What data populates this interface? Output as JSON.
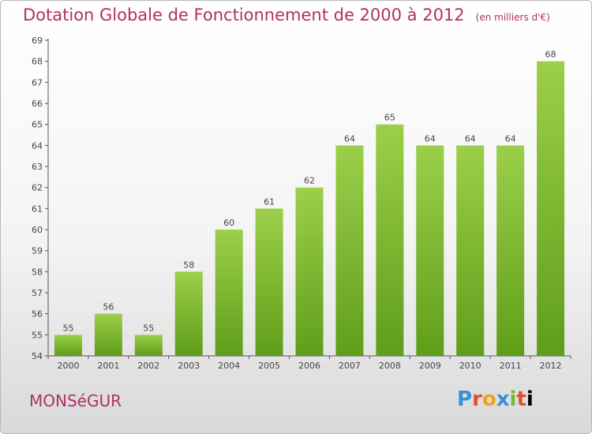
{
  "header": {
    "title": "Dotation Globale de Fonctionnement de 2000 à 2012",
    "unit": "(en milliers d'€)"
  },
  "footer": {
    "city": "MONSéGUR",
    "logo_letters": [
      "P",
      "r",
      "o",
      "x",
      "i",
      "t",
      "i"
    ]
  },
  "chart_data": {
    "type": "bar",
    "title": "Dotation Globale de Fonctionnement de 2000 à 2012",
    "xlabel": "",
    "ylabel": "",
    "categories": [
      "2000",
      "2001",
      "2002",
      "2003",
      "2004",
      "2005",
      "2006",
      "2007",
      "2008",
      "2009",
      "2010",
      "2011",
      "2012"
    ],
    "values": [
      55,
      56,
      55,
      58,
      60,
      61,
      62,
      64,
      65,
      64,
      64,
      64,
      68
    ],
    "ylim": [
      54,
      69
    ],
    "yticks": [
      54,
      55,
      56,
      57,
      58,
      59,
      60,
      61,
      62,
      63,
      64,
      65,
      66,
      67,
      68,
      69
    ],
    "grid": false,
    "bar_color_top": "#9ccf4a",
    "bar_color_bottom": "#5f9e1a"
  }
}
